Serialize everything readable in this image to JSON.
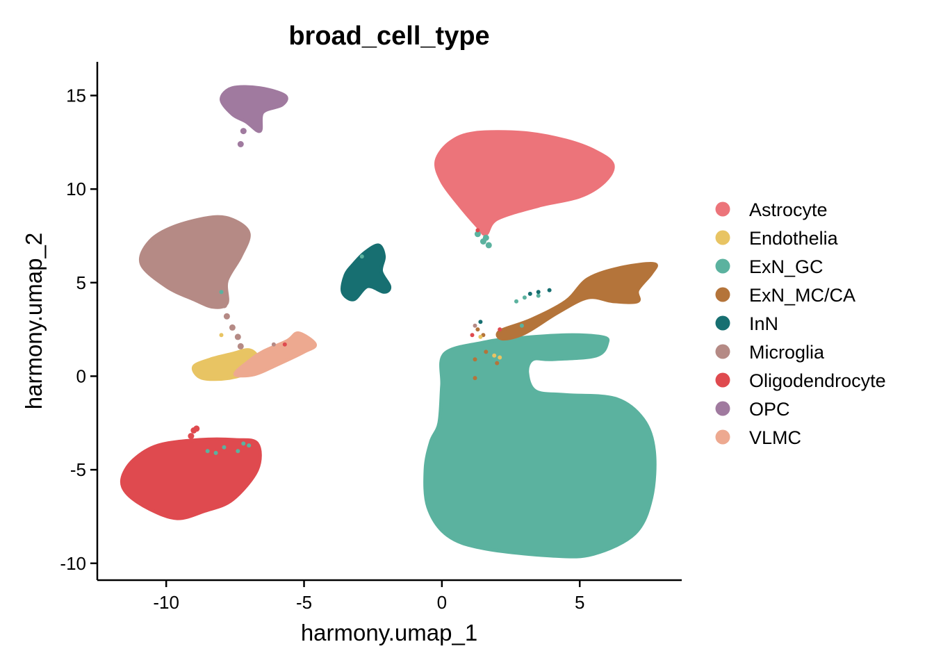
{
  "chart_data": {
    "type": "scatter",
    "title": "broad_cell_type",
    "xlabel": "harmony.umap_1",
    "ylabel": "harmony.umap_2",
    "xlim": [
      -12.5,
      8.7
    ],
    "ylim": [
      -10.9,
      16.8
    ],
    "x_ticks": [
      -10,
      -5,
      0,
      5
    ],
    "x_tick_labels": [
      "-10",
      "-5",
      "0",
      "5"
    ],
    "y_ticks": [
      -10,
      -5,
      0,
      5,
      10,
      15
    ],
    "y_tick_labels": [
      "-10",
      "-5",
      "0",
      "5",
      "10",
      "15"
    ],
    "grid": false,
    "legend_position": "right",
    "series": [
      {
        "name": "Astrocyte",
        "color": "#EC747A",
        "hull": [
          [
            -0.2,
            11.5
          ],
          [
            0.3,
            12.5
          ],
          [
            1.2,
            13.0
          ],
          [
            3.0,
            13.0
          ],
          [
            4.5,
            12.6
          ],
          [
            5.6,
            12.0
          ],
          [
            6.2,
            11.3
          ],
          [
            5.9,
            10.4
          ],
          [
            5.0,
            9.6
          ],
          [
            3.5,
            9.1
          ],
          [
            2.0,
            8.4
          ],
          [
            1.6,
            7.6
          ],
          [
            1.3,
            8.0
          ],
          [
            0.6,
            9.2
          ],
          [
            0.0,
            10.4
          ]
        ]
      },
      {
        "name": "Endothelia",
        "color": "#E8C463",
        "hull": [
          [
            -9.0,
            0.5
          ],
          [
            -8.4,
            0.9
          ],
          [
            -7.6,
            1.2
          ],
          [
            -7.0,
            1.4
          ],
          [
            -6.7,
            1.0
          ],
          [
            -6.9,
            0.3
          ],
          [
            -7.7,
            -0.1
          ],
          [
            -8.7,
            -0.1
          ]
        ]
      },
      {
        "name": "ExN_GC",
        "color": "#5BB29F",
        "hull": [
          [
            0.1,
            1.2
          ],
          [
            1.5,
            1.8
          ],
          [
            2.5,
            2.0
          ],
          [
            4.5,
            2.2
          ],
          [
            5.8,
            2.1
          ],
          [
            6.0,
            1.8
          ],
          [
            5.6,
            1.1
          ],
          [
            4.0,
            0.9
          ],
          [
            3.3,
            0.9
          ],
          [
            3.1,
            0.2
          ],
          [
            3.4,
            -0.8
          ],
          [
            4.5,
            -1.0
          ],
          [
            6.3,
            -1.2
          ],
          [
            7.3,
            -2.3
          ],
          [
            7.7,
            -4.0
          ],
          [
            7.6,
            -6.5
          ],
          [
            7.0,
            -8.4
          ],
          [
            5.5,
            -9.5
          ],
          [
            4.0,
            -9.6
          ],
          [
            1.5,
            -9.2
          ],
          [
            0.2,
            -8.5
          ],
          [
            -0.5,
            -7.0
          ],
          [
            -0.6,
            -5.0
          ],
          [
            -0.4,
            -3.5
          ],
          [
            -0.1,
            -2.5
          ],
          [
            0.0,
            -0.5
          ]
        ]
      },
      {
        "name": "ExN_MC/CA",
        "color": "#B4743A",
        "hull": [
          [
            2.1,
            2.4
          ],
          [
            3.2,
            3.0
          ],
          [
            4.5,
            4.0
          ],
          [
            5.3,
            5.2
          ],
          [
            6.5,
            5.8
          ],
          [
            7.7,
            6.0
          ],
          [
            7.6,
            5.5
          ],
          [
            7.1,
            4.6
          ],
          [
            7.1,
            4.0
          ],
          [
            6.2,
            4.0
          ],
          [
            5.3,
            4.2
          ],
          [
            4.2,
            3.4
          ],
          [
            3.0,
            2.3
          ],
          [
            2.2,
            2.0
          ]
        ]
      },
      {
        "name": "InN",
        "color": "#176F71",
        "hull": [
          [
            -3.6,
            4.5
          ],
          [
            -3.5,
            5.4
          ],
          [
            -3.2,
            6.0
          ],
          [
            -2.8,
            6.6
          ],
          [
            -2.3,
            7.0
          ],
          [
            -2.1,
            6.4
          ],
          [
            -2.2,
            5.6
          ],
          [
            -1.9,
            4.8
          ],
          [
            -2.1,
            4.5
          ],
          [
            -2.7,
            4.8
          ],
          [
            -3.2,
            4.1
          ]
        ]
      },
      {
        "name": "Microglia",
        "color": "#B58A85",
        "hull": [
          [
            -10.9,
            6.0
          ],
          [
            -10.6,
            7.2
          ],
          [
            -9.7,
            8.0
          ],
          [
            -8.3,
            8.5
          ],
          [
            -7.5,
            8.3
          ],
          [
            -7.0,
            7.6
          ],
          [
            -7.3,
            6.4
          ],
          [
            -7.8,
            5.1
          ],
          [
            -7.8,
            3.9
          ],
          [
            -8.3,
            3.7
          ],
          [
            -9.0,
            4.1
          ],
          [
            -10.0,
            4.8
          ]
        ]
      },
      {
        "name": "Oligodendrocyte",
        "color": "#DF4A4F",
        "hull": [
          [
            -11.6,
            -5.5
          ],
          [
            -11.2,
            -4.5
          ],
          [
            -10.3,
            -3.7
          ],
          [
            -8.8,
            -3.4
          ],
          [
            -7.5,
            -3.4
          ],
          [
            -6.7,
            -3.6
          ],
          [
            -6.7,
            -5.0
          ],
          [
            -7.6,
            -6.6
          ],
          [
            -8.6,
            -7.2
          ],
          [
            -9.6,
            -7.6
          ],
          [
            -10.6,
            -7.1
          ],
          [
            -11.4,
            -6.3
          ]
        ]
      },
      {
        "name": "OPC",
        "color": "#A07A9F",
        "hull": [
          [
            -8.0,
            14.8
          ],
          [
            -7.6,
            15.4
          ],
          [
            -6.6,
            15.4
          ],
          [
            -5.7,
            15.0
          ],
          [
            -5.8,
            14.5
          ],
          [
            -6.5,
            14.1
          ],
          [
            -6.6,
            13.1
          ],
          [
            -7.1,
            13.6
          ],
          [
            -7.6,
            14.0
          ]
        ]
      },
      {
        "name": "VLMC",
        "color": "#EDA990",
        "hull": [
          [
            -7.5,
            0.1
          ],
          [
            -7.0,
            0.8
          ],
          [
            -6.5,
            1.3
          ],
          [
            -5.6,
            1.9
          ],
          [
            -5.2,
            2.3
          ],
          [
            -4.6,
            1.7
          ],
          [
            -5.0,
            1.3
          ],
          [
            -6.0,
            0.6
          ],
          [
            -6.8,
            0.1
          ]
        ]
      }
    ],
    "bridges": [
      {
        "series": "Microglia",
        "points": [
          [
            -7.9,
            3.8
          ],
          [
            -7.8,
            3.2
          ],
          [
            -7.6,
            2.6
          ],
          [
            -7.4,
            2.1
          ],
          [
            -7.3,
            1.6
          ]
        ]
      },
      {
        "series": "OPC",
        "points": [
          [
            -7.0,
            13.6
          ],
          [
            -7.2,
            13.1
          ],
          [
            -7.3,
            12.4
          ]
        ]
      },
      {
        "series": "ExN_GC",
        "points": [
          [
            1.3,
            7.6
          ],
          [
            1.5,
            7.2
          ],
          [
            1.7,
            7.0
          ],
          [
            1.6,
            7.4
          ]
        ]
      },
      {
        "series": "Oligodendrocyte",
        "points": [
          [
            -9.1,
            -3.2
          ],
          [
            -9.0,
            -2.9
          ],
          [
            -8.9,
            -2.8
          ]
        ]
      }
    ],
    "stray_points": [
      {
        "series": "ExN_GC",
        "points": [
          [
            -8.5,
            -4.0
          ],
          [
            -8.2,
            -4.1
          ],
          [
            -7.9,
            -3.8
          ],
          [
            -7.4,
            -4.0
          ],
          [
            -7.2,
            -3.6
          ],
          [
            -7.0,
            -3.7
          ],
          [
            -2.9,
            6.4
          ],
          [
            3.0,
            4.2
          ],
          [
            2.7,
            4.0
          ],
          [
            3.5,
            4.3
          ],
          [
            2.9,
            2.7
          ],
          [
            -8.0,
            4.5
          ]
        ]
      },
      {
        "series": "ExN_MC/CA",
        "points": [
          [
            1.6,
            1.3
          ],
          [
            1.2,
            0.9
          ],
          [
            1.3,
            2.5
          ],
          [
            2.0,
            0.7
          ],
          [
            1.2,
            -0.1
          ],
          [
            1.5,
            2.2
          ]
        ]
      },
      {
        "series": "InN",
        "points": [
          [
            3.5,
            4.5
          ],
          [
            3.2,
            4.4
          ],
          [
            3.9,
            4.6
          ],
          [
            1.4,
            2.9
          ]
        ]
      },
      {
        "series": "Oligodendrocyte",
        "points": [
          [
            1.1,
            2.2
          ],
          [
            -5.7,
            1.7
          ],
          [
            1.3,
            7.8
          ],
          [
            2.1,
            2.5
          ]
        ]
      },
      {
        "series": "Endothelia",
        "points": [
          [
            1.9,
            1.1
          ],
          [
            2.1,
            1.0
          ],
          [
            1.4,
            2.1
          ],
          [
            -8.0,
            2.2
          ]
        ]
      },
      {
        "series": "Microglia",
        "points": [
          [
            -6.1,
            1.7
          ],
          [
            1.2,
            2.7
          ]
        ]
      }
    ]
  }
}
